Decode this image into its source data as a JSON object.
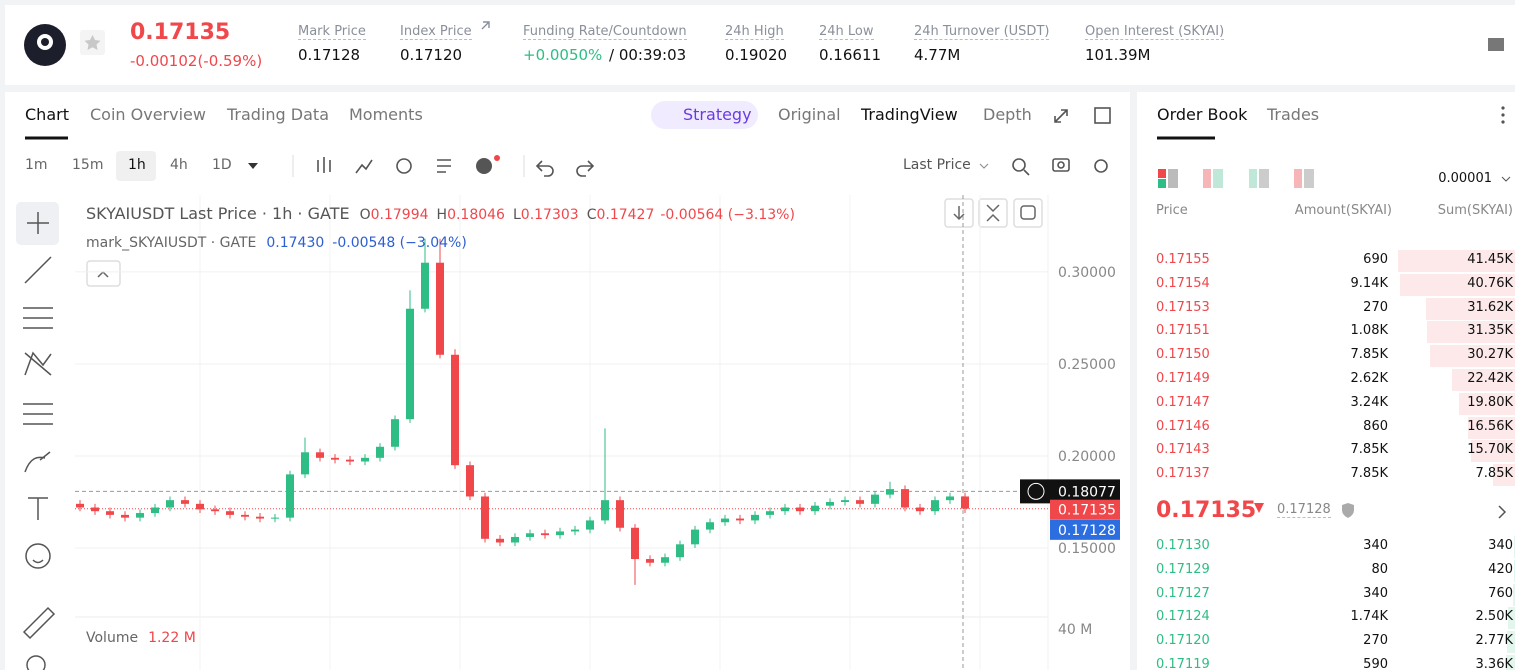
{
  "header": {
    "price": "0.17135",
    "change": "-0.00102(-0.59%)",
    "stats": [
      {
        "label": "Mark Price",
        "value": "0.17128"
      },
      {
        "label": "Index Price",
        "value": "0.17120"
      },
      {
        "label": "Funding Rate/Countdown",
        "value": "+0.0050%",
        "extra": "/ 00:39:03"
      },
      {
        "label": "24h High",
        "value": "0.19020"
      },
      {
        "label": "24h Low",
        "value": "0.16611"
      },
      {
        "label": "24h Turnover (USDT)",
        "value": "4.77M"
      },
      {
        "label": "Open Interest (SKYAI)",
        "value": "101.39M"
      }
    ]
  },
  "tabs": [
    "Chart",
    "Coin Overview",
    "Trading Data",
    "Moments"
  ],
  "view_tabs": [
    "Strategy",
    "Original",
    "TradingView",
    "Depth"
  ],
  "intervals": [
    "1m",
    "15m",
    "1h",
    "4h",
    "1D"
  ],
  "price_source": "Last Price",
  "chart_data": {
    "type": "candlestick",
    "title": "SKYAIUSDT Last Price · 1h · GATE",
    "ohlc_legend": [
      {
        "key": "O",
        "value": "0.17994"
      },
      {
        "key": "H",
        "value": "0.18046"
      },
      {
        "key": "L",
        "value": "0.17303"
      },
      {
        "key": "C",
        "value": "0.17427"
      }
    ],
    "change": "-0.00564 (−3.13%)",
    "mark_legend": {
      "name": "mark_SKYAIUSDT · GATE",
      "value": "0.17430",
      "change": "-0.00548 (−3.04%)"
    },
    "open": [
      0.174,
      0.172,
      0.17,
      0.168,
      0.1665,
      0.169,
      0.172,
      0.176,
      0.174,
      0.171,
      0.17,
      0.168,
      0.167,
      0.166,
      0.1665,
      0.19,
      0.202,
      0.199,
      0.198,
      0.197,
      0.199,
      0.205,
      0.22,
      0.28,
      0.305,
      0.255,
      0.195,
      0.178,
      0.155,
      0.153,
      0.156,
      0.158,
      0.157,
      0.159,
      0.16,
      0.165,
      0.176,
      0.161,
      0.144,
      0.142,
      0.145,
      0.152,
      0.16,
      0.164,
      0.166,
      0.165,
      0.168,
      0.17,
      0.172,
      0.17,
      0.173,
      0.175,
      0.176,
      0.174,
      0.179,
      0.182,
      0.172,
      0.17,
      0.176,
      0.178
    ],
    "high": [
      0.176,
      0.174,
      0.172,
      0.17,
      0.171,
      0.174,
      0.178,
      0.178,
      0.176,
      0.173,
      0.172,
      0.17,
      0.169,
      0.1685,
      0.192,
      0.21,
      0.204,
      0.201,
      0.2,
      0.201,
      0.207,
      0.222,
      0.29,
      0.318,
      0.318,
      0.258,
      0.197,
      0.18,
      0.157,
      0.158,
      0.16,
      0.16,
      0.161,
      0.162,
      0.167,
      0.215,
      0.178,
      0.163,
      0.146,
      0.147,
      0.154,
      0.162,
      0.166,
      0.168,
      0.168,
      0.17,
      0.172,
      0.174,
      0.174,
      0.175,
      0.177,
      0.178,
      0.178,
      0.181,
      0.186,
      0.184,
      0.174,
      0.178,
      0.18,
      0.18
    ],
    "low": [
      0.17,
      0.168,
      0.166,
      0.1645,
      0.1645,
      0.167,
      0.17,
      0.172,
      0.169,
      0.168,
      0.166,
      0.165,
      0.164,
      0.164,
      0.1645,
      0.188,
      0.197,
      0.196,
      0.195,
      0.195,
      0.197,
      0.203,
      0.218,
      0.278,
      0.253,
      0.193,
      0.176,
      0.153,
      0.151,
      0.151,
      0.154,
      0.155,
      0.155,
      0.157,
      0.158,
      0.163,
      0.159,
      0.13,
      0.14,
      0.14,
      0.143,
      0.15,
      0.158,
      0.162,
      0.163,
      0.163,
      0.166,
      0.168,
      0.168,
      0.168,
      0.171,
      0.173,
      0.172,
      0.172,
      0.177,
      0.17,
      0.168,
      0.168,
      0.174,
      0.169
    ],
    "close": [
      0.172,
      0.17,
      0.168,
      0.1665,
      0.169,
      0.172,
      0.176,
      0.174,
      0.171,
      0.17,
      0.168,
      0.167,
      0.166,
      0.1665,
      0.19,
      0.202,
      0.199,
      0.198,
      0.197,
      0.199,
      0.205,
      0.22,
      0.28,
      0.305,
      0.255,
      0.195,
      0.178,
      0.155,
      0.153,
      0.156,
      0.158,
      0.157,
      0.159,
      0.16,
      0.165,
      0.176,
      0.161,
      0.144,
      0.142,
      0.145,
      0.152,
      0.16,
      0.164,
      0.166,
      0.165,
      0.168,
      0.17,
      0.172,
      0.17,
      0.173,
      0.175,
      0.176,
      0.174,
      0.179,
      0.182,
      0.172,
      0.17,
      0.176,
      0.178,
      0.1714
    ],
    "up_color": "#2ebd85",
    "down_color": "#f0474b",
    "ylim": [
      0.1136,
      0.3418
    ],
    "yticks": [
      {
        "value": 0.15,
        "label": "0.15000"
      },
      {
        "value": 0.2,
        "label": "0.20000"
      },
      {
        "value": 0.25,
        "label": "0.25000"
      },
      {
        "value": 0.3,
        "label": "0.30000"
      }
    ],
    "grid": true,
    "crosshair_price": 0.18077,
    "last_price": 0.17135,
    "mark_price": 0.17128,
    "volume_title": "Volume",
    "volume_value": "1.22 M",
    "volume_ticks": [
      "40 M"
    ]
  },
  "order_book": {
    "tabs": [
      "Order Book",
      "Trades"
    ],
    "precision": "0.00001",
    "columns": [
      "Price",
      "Amount(SKYAI)",
      "Sum(SKYAI)"
    ],
    "asks": [
      {
        "price": "0.17155",
        "amount": "690",
        "sum": {
          "value": 41450,
          "label": "41.45K"
        }
      },
      {
        "price": "0.17154",
        "amount": "9.14K",
        "sum": {
          "value": 40760,
          "label": "40.76K"
        }
      },
      {
        "price": "0.17153",
        "amount": "270",
        "sum": {
          "value": 31620,
          "label": "31.62K"
        }
      },
      {
        "price": "0.17151",
        "amount": "1.08K",
        "sum": {
          "value": 31350,
          "label": "31.35K"
        }
      },
      {
        "price": "0.17150",
        "amount": "7.85K",
        "sum": {
          "value": 30270,
          "label": "30.27K"
        }
      },
      {
        "price": "0.17149",
        "amount": "2.62K",
        "sum": {
          "value": 22420,
          "label": "22.42K"
        }
      },
      {
        "price": "0.17147",
        "amount": "3.24K",
        "sum": {
          "value": 19800,
          "label": "19.80K"
        }
      },
      {
        "price": "0.17146",
        "amount": "860",
        "sum": {
          "value": 16560,
          "label": "16.56K"
        }
      },
      {
        "price": "0.17143",
        "amount": "7.85K",
        "sum": {
          "value": 15700,
          "label": "15.70K"
        }
      },
      {
        "price": "0.17137",
        "amount": "7.85K",
        "sum": {
          "value": 7850,
          "label": "7.85K"
        }
      }
    ],
    "last_price": "0.17135",
    "mark_price": "0.17128",
    "bids": [
      {
        "price": "0.17130",
        "amount": "340",
        "sum": 340
      },
      {
        "price": "0.17129",
        "amount": "80",
        "sum": 420
      },
      {
        "price": "0.17127",
        "amount": "340",
        "sum": 760
      },
      {
        "price": "0.17124",
        "amount": "1.74K",
        "sum": {
          "value": 2500,
          "label": "2.50K"
        }
      },
      {
        "price": "0.17120",
        "amount": "270",
        "sum": {
          "value": 2770,
          "label": "2.77K"
        }
      },
      {
        "price": "0.17119",
        "amount": "590",
        "sum": {
          "value": 3360,
          "label": "3.36K"
        }
      }
    ]
  }
}
